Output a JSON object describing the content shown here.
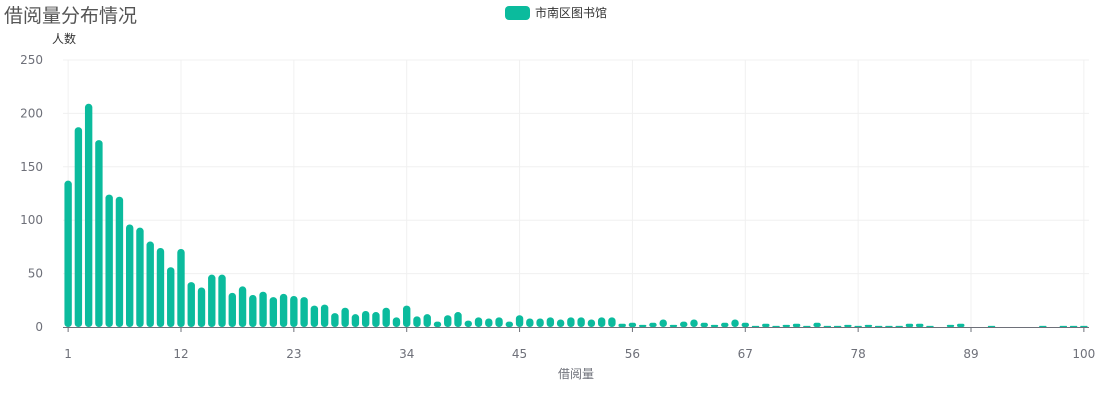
{
  "title": "借阅量分布情况",
  "legend": {
    "label": "市南区图书馆",
    "color": "#0bbb9d"
  },
  "chart_data": {
    "type": "bar",
    "xlabel": "借阅量",
    "ylabel": "人数",
    "ylim": [
      0,
      250
    ],
    "yticks": [
      0,
      50,
      100,
      150,
      200,
      250
    ],
    "xtick_labels": [
      "1",
      "12",
      "23",
      "34",
      "45",
      "56",
      "67",
      "78",
      "89",
      "100"
    ],
    "categories": [
      1,
      2,
      3,
      4,
      5,
      6,
      7,
      8,
      9,
      10,
      11,
      12,
      13,
      14,
      15,
      16,
      17,
      18,
      19,
      20,
      21,
      22,
      23,
      24,
      25,
      26,
      27,
      28,
      29,
      30,
      31,
      32,
      33,
      34,
      35,
      36,
      37,
      38,
      39,
      40,
      41,
      42,
      43,
      44,
      45,
      46,
      47,
      48,
      49,
      50,
      51,
      52,
      53,
      54,
      55,
      56,
      57,
      58,
      59,
      60,
      61,
      62,
      63,
      64,
      65,
      66,
      67,
      68,
      69,
      70,
      71,
      72,
      73,
      74,
      75,
      76,
      77,
      78,
      79,
      80,
      81,
      82,
      83,
      84,
      85,
      86,
      87,
      88,
      89,
      90,
      91,
      92,
      93,
      94,
      95,
      96,
      97,
      98,
      99,
      100
    ],
    "series": [
      {
        "name": "市南区图书馆",
        "values": [
          137,
          187,
          209,
          175,
          124,
          122,
          96,
          93,
          80,
          74,
          56,
          73,
          42,
          37,
          49,
          49,
          32,
          38,
          30,
          33,
          28,
          31,
          29,
          28,
          20,
          21,
          13,
          18,
          12,
          15,
          14,
          18,
          9,
          20,
          10,
          12,
          5,
          11,
          14,
          6,
          9,
          8,
          9,
          5,
          11,
          8,
          8,
          9,
          7,
          9,
          9,
          7,
          9,
          9,
          3,
          4,
          2,
          4,
          7,
          2,
          5,
          7,
          4,
          2,
          4,
          7,
          4,
          1,
          3,
          1,
          2,
          3,
          1,
          4,
          1,
          1,
          2,
          1,
          2,
          1,
          1,
          1,
          3,
          3,
          1,
          0,
          2,
          3,
          0,
          0,
          1,
          0,
          0,
          0,
          0,
          1,
          0,
          1,
          1,
          1
        ]
      }
    ],
    "grid": true,
    "legend_position": "top-center"
  }
}
